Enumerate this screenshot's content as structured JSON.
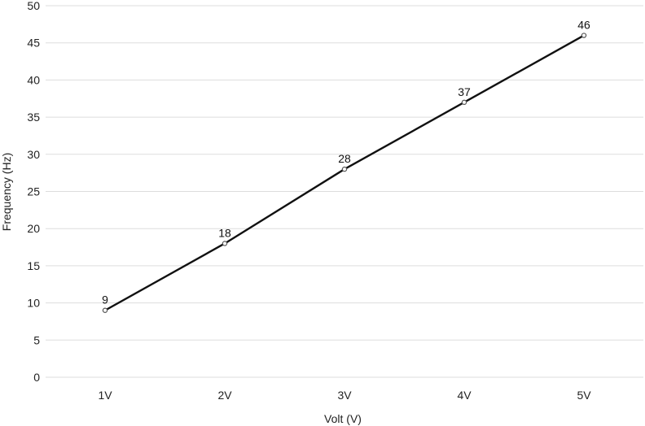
{
  "chart_data": {
    "type": "line",
    "title": "",
    "xlabel": "Volt (V)",
    "ylabel": "Frequency (Hz)",
    "categories": [
      "1V",
      "2V",
      "3V",
      "4V",
      "5V"
    ],
    "series": [
      {
        "values": [
          9,
          18,
          28,
          37,
          46
        ]
      }
    ],
    "ylim": [
      0,
      50
    ],
    "yticks": [
      0,
      5,
      10,
      15,
      20,
      25,
      30,
      35,
      40,
      45,
      50
    ],
    "grid": true,
    "legend": "none",
    "data_labels": true
  },
  "colors": {
    "line": "#111111",
    "point_stroke": "#555555",
    "grid": "#dddddd",
    "text": "#222222"
  }
}
